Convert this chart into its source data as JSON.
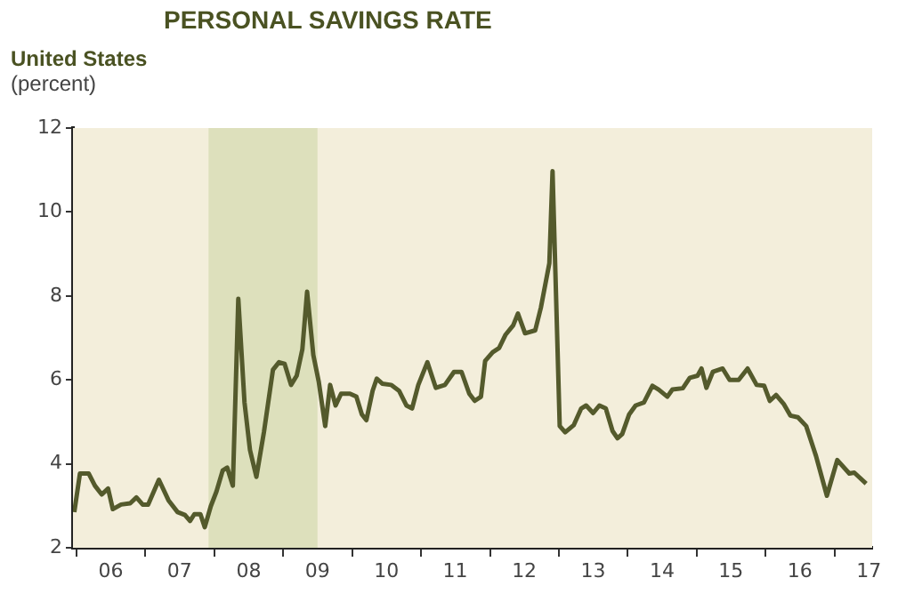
{
  "chart_data": {
    "type": "line",
    "title": "PERSONAL SAVINGS RATE",
    "subtitle": "United States",
    "ylabel": "(percent)",
    "series": [
      {
        "color": "#545a2c",
        "x": [
          "2005-12-20",
          "2006-01-19",
          "2006-03-06",
          "2006-04-08",
          "2006-05-14",
          "2006-06-17",
          "2006-07-12",
          "2006-08-25",
          "2006-10-12",
          "2006-11-14",
          "2006-12-17",
          "2007-01-15",
          "2007-03-13",
          "2007-05-03",
          "2007-06-20",
          "2007-07-29",
          "2007-08-25",
          "2007-09-17",
          "2007-10-19",
          "2007-11-11",
          "2007-12-13",
          "2008-01-12",
          "2008-02-14",
          "2008-03-09",
          "2008-04-08",
          "2008-05-07",
          "2008-06-09",
          "2008-07-08",
          "2008-08-11",
          "2008-09-20",
          "2008-11-07",
          "2008-12-09",
          "2009-01-08",
          "2009-02-11",
          "2009-03-13",
          "2009-04-12",
          "2009-05-07",
          "2009-06-09",
          "2009-07-08",
          "2009-08-11",
          "2009-09-06",
          "2009-10-05",
          "2009-11-03",
          "2009-12-20",
          "2010-01-23",
          "2010-02-21",
          "2010-03-17",
          "2010-04-19",
          "2010-05-11",
          "2010-06-09",
          "2010-07-26",
          "2010-09-06",
          "2010-10-15",
          "2010-11-14",
          "2010-12-17",
          "2011-02-03",
          "2011-03-20",
          "2011-05-07",
          "2011-06-24",
          "2011-08-03",
          "2011-09-13",
          "2011-10-12",
          "2011-11-14",
          "2011-12-06",
          "2012-01-15",
          "2012-02-18",
          "2012-03-24",
          "2012-05-03",
          "2012-05-28",
          "2012-07-05",
          "2012-08-28",
          "2012-09-27",
          "2012-11-11",
          "2012-11-28",
          "2013-01-05",
          "2013-02-03",
          "2013-03-20",
          "2013-04-29",
          "2013-05-25",
          "2013-07-01",
          "2013-08-03",
          "2013-09-06",
          "2013-10-12",
          "2013-11-07",
          "2013-12-02",
          "2014-01-08",
          "2014-02-11",
          "2014-03-27",
          "2014-05-11",
          "2014-06-13",
          "2014-07-29",
          "2014-08-25",
          "2014-10-19",
          "2014-11-25",
          "2015-01-05",
          "2015-01-26",
          "2015-02-21",
          "2015-03-27",
          "2015-05-18",
          "2015-06-24",
          "2015-08-11",
          "2015-09-27",
          "2015-11-14",
          "2015-12-24",
          "2016-01-23",
          "2016-02-25",
          "2016-04-05",
          "2016-05-11",
          "2016-06-20",
          "2016-08-03",
          "2016-09-24",
          "2016-11-21",
          "2017-01-15",
          "2017-03-20",
          "2017-04-15",
          "2017-06-17"
        ],
        "values": [
          2.85,
          3.77,
          3.77,
          3.48,
          3.27,
          3.41,
          2.92,
          3.03,
          3.06,
          3.2,
          3.03,
          3.03,
          3.62,
          3.13,
          2.85,
          2.78,
          2.64,
          2.8,
          2.8,
          2.49,
          2.99,
          3.34,
          3.84,
          3.91,
          3.48,
          7.93,
          5.46,
          4.33,
          3.69,
          4.75,
          6.24,
          6.42,
          6.38,
          5.88,
          6.1,
          6.73,
          8.1,
          6.59,
          5.95,
          4.9,
          5.88,
          5.39,
          5.67,
          5.67,
          5.6,
          5.18,
          5.04,
          5.74,
          6.03,
          5.91,
          5.88,
          5.74,
          5.39,
          5.32,
          5.88,
          6.42,
          5.81,
          5.88,
          6.19,
          6.19,
          5.67,
          5.5,
          5.6,
          6.45,
          6.66,
          6.76,
          7.08,
          7.3,
          7.58,
          7.11,
          7.18,
          7.72,
          8.78,
          10.97,
          4.9,
          4.75,
          4.92,
          5.32,
          5.39,
          5.21,
          5.39,
          5.32,
          4.78,
          4.61,
          4.71,
          5.18,
          5.39,
          5.46,
          5.86,
          5.77,
          5.6,
          5.77,
          5.8,
          6.05,
          6.1,
          6.27,
          5.81,
          6.19,
          6.27,
          6.0,
          6.0,
          6.27,
          5.88,
          5.86,
          5.5,
          5.64,
          5.43,
          5.15,
          5.11,
          4.9,
          4.19,
          3.24,
          4.09,
          3.77,
          3.79,
          3.53
        ]
      }
    ],
    "xlim": [
      "2005-12-13",
      "2017-07-19"
    ],
    "xticks": [
      {
        "value": "2006-01-01",
        "label": null
      },
      {
        "value": "2006-07-01",
        "label": "06"
      },
      {
        "value": "2007-01-01",
        "label": null
      },
      {
        "value": "2007-07-01",
        "label": "07"
      },
      {
        "value": "2008-01-01",
        "label": null
      },
      {
        "value": "2008-07-01",
        "label": "08"
      },
      {
        "value": "2009-01-01",
        "label": null
      },
      {
        "value": "2009-07-01",
        "label": "09"
      },
      {
        "value": "2010-01-01",
        "label": null
      },
      {
        "value": "2010-07-01",
        "label": "10"
      },
      {
        "value": "2011-01-01",
        "label": null
      },
      {
        "value": "2011-07-01",
        "label": "11"
      },
      {
        "value": "2012-01-01",
        "label": null
      },
      {
        "value": "2012-07-01",
        "label": "12"
      },
      {
        "value": "2013-01-01",
        "label": null
      },
      {
        "value": "2013-07-01",
        "label": "13"
      },
      {
        "value": "2014-01-01",
        "label": null
      },
      {
        "value": "2014-07-01",
        "label": "14"
      },
      {
        "value": "2015-01-01",
        "label": null
      },
      {
        "value": "2015-07-01",
        "label": "15"
      },
      {
        "value": "2016-01-01",
        "label": null
      },
      {
        "value": "2016-07-01",
        "label": "16"
      },
      {
        "value": "2017-01-01",
        "label": null
      },
      {
        "value": "2017-07-01",
        "label": "17"
      }
    ],
    "ylim": [
      2,
      12
    ],
    "yticks": [
      2,
      4,
      6,
      8,
      10,
      12
    ],
    "bands": [
      {
        "axis": "x",
        "from": "2007-12-01",
        "to": "2009-07-01",
        "color": "#dde0bc"
      }
    ],
    "grid": false,
    "legend": false,
    "marker": "none",
    "line_style": "solid"
  }
}
